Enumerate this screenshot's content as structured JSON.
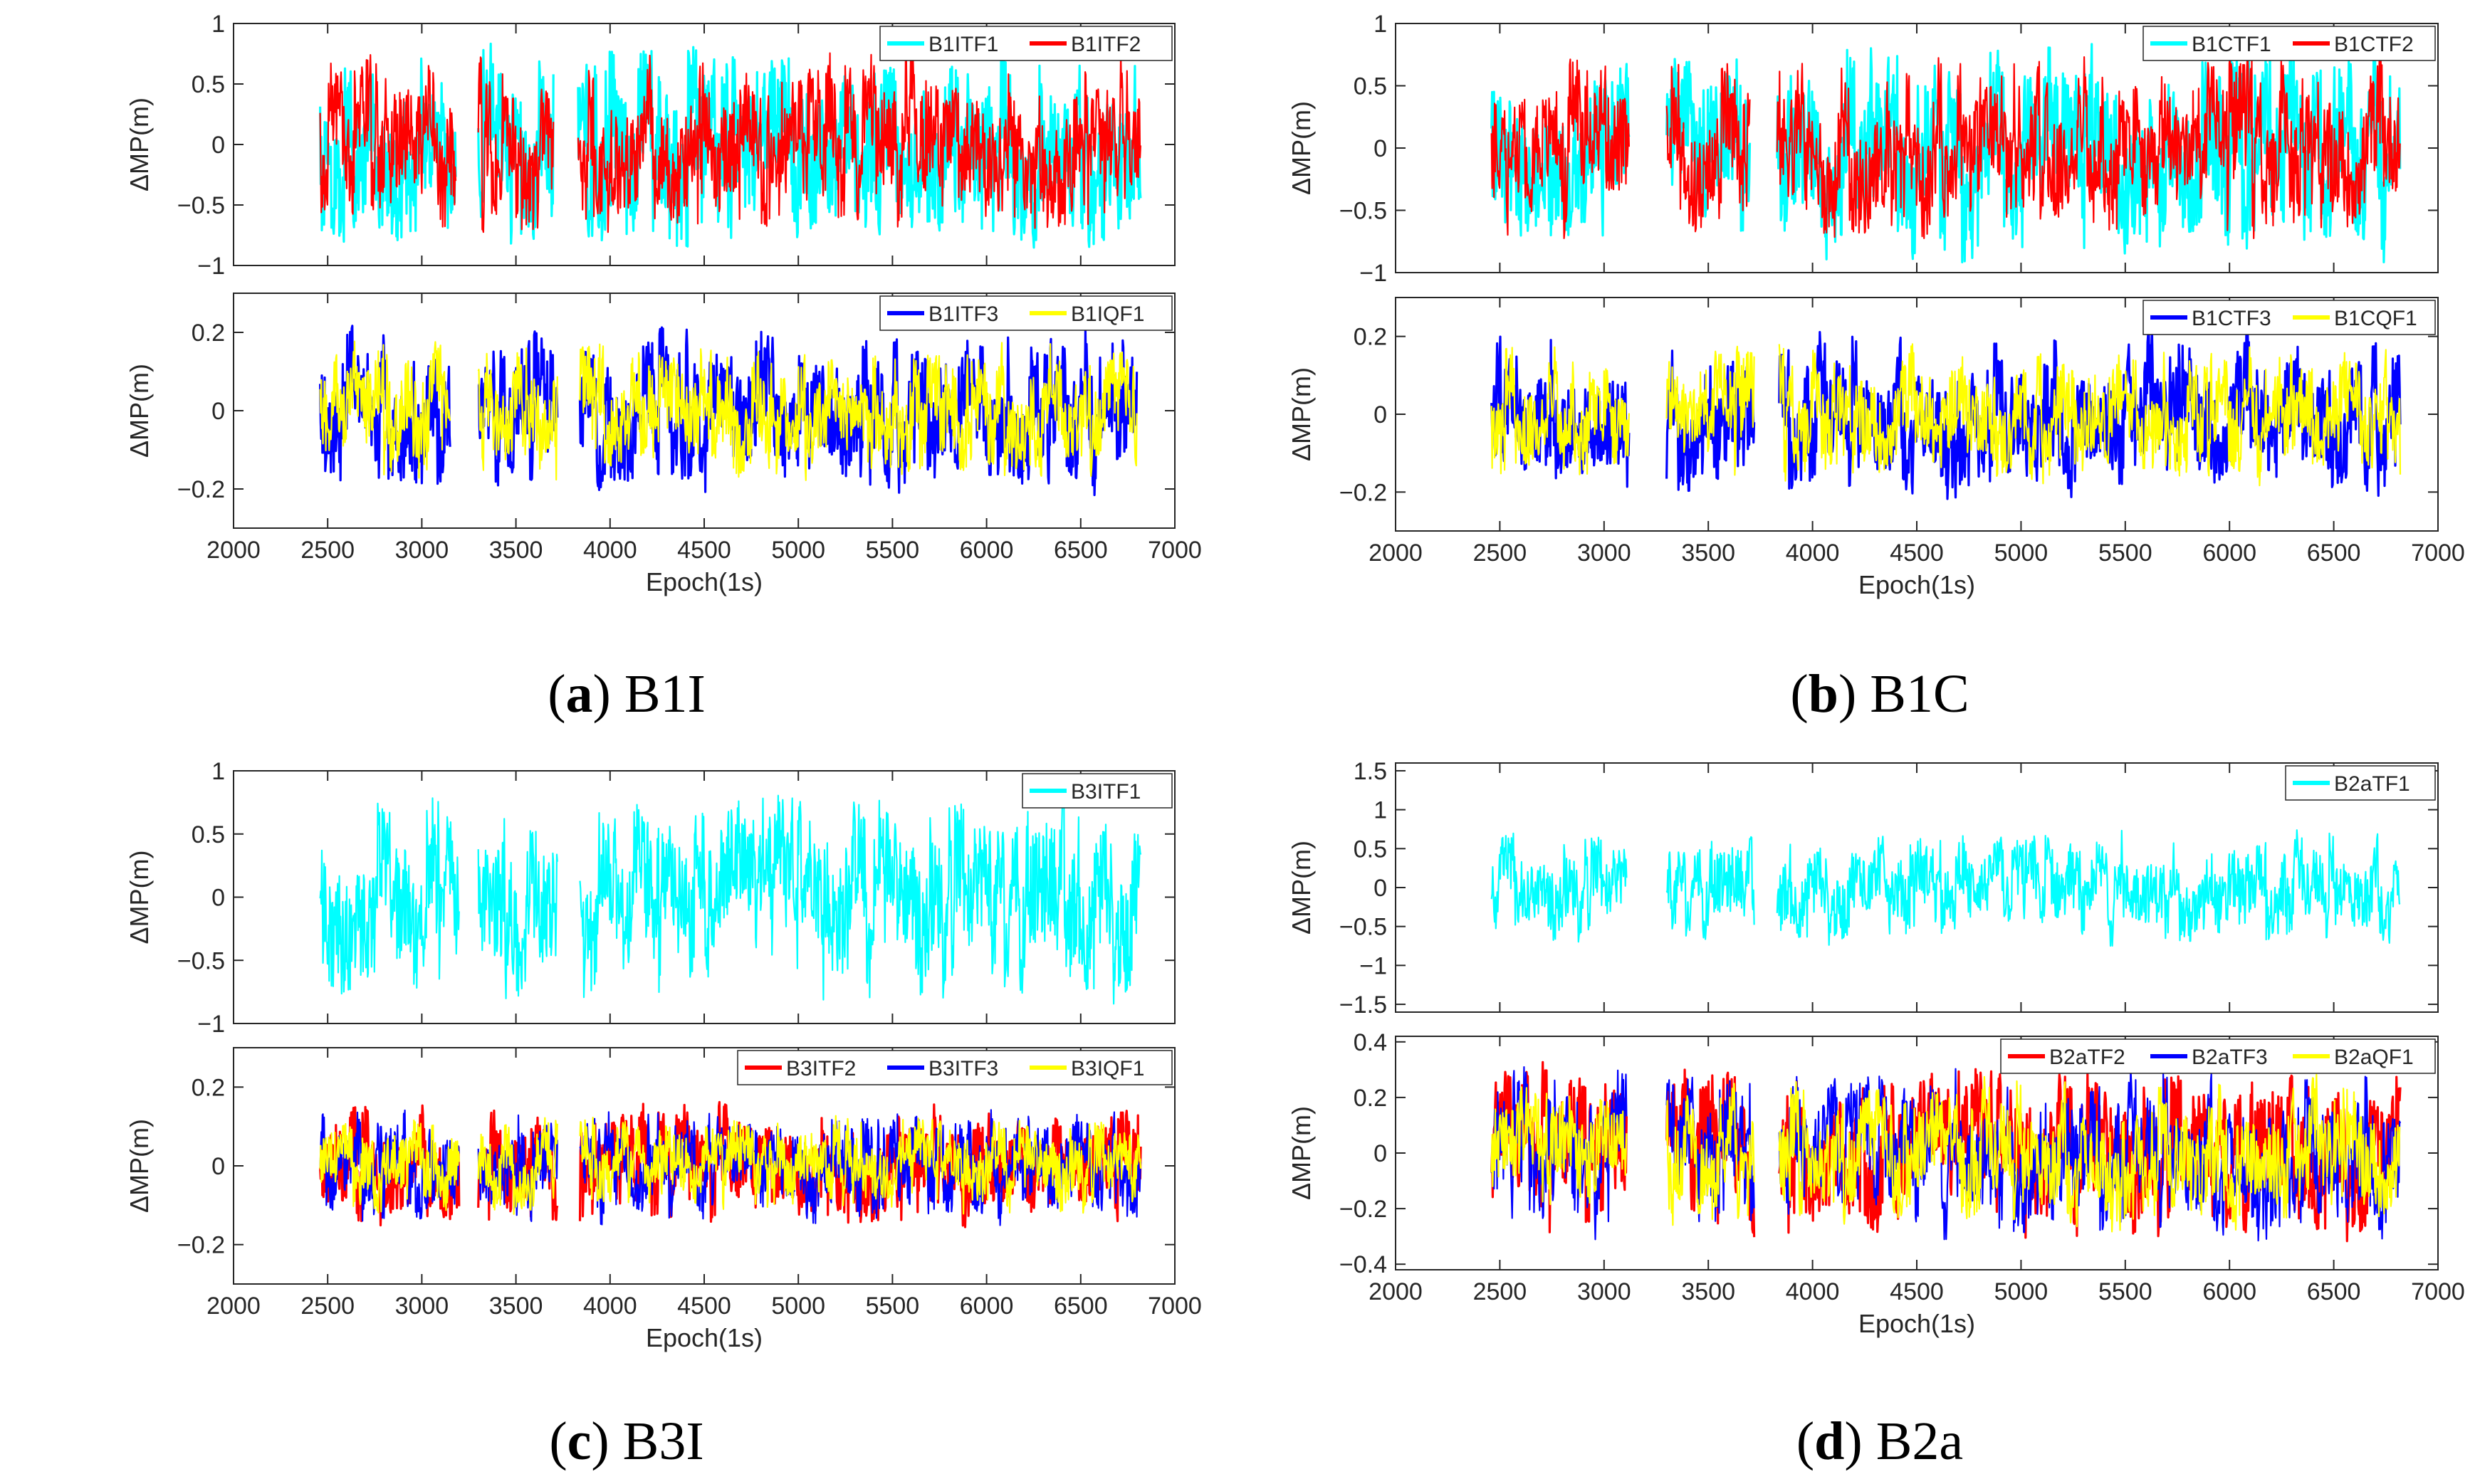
{
  "figure": {
    "captions": [
      {
        "letter": "a",
        "name": "B1I"
      },
      {
        "letter": "b",
        "name": "B1C"
      },
      {
        "letter": "c",
        "name": "B3I"
      },
      {
        "letter": "d",
        "name": "B2a"
      }
    ]
  },
  "chart_data": [
    {
      "type": "line",
      "panel": "a",
      "subplot": "top",
      "ylabel": "ΔMP(m)",
      "ylim": [
        -1,
        1
      ],
      "yticks": [
        -1,
        -0.5,
        0,
        0.5,
        1
      ],
      "xlim": [
        2000,
        7000
      ],
      "xticks": [],
      "series": [
        {
          "name": "B1ITF1",
          "color": "#00ffff",
          "amp": 0.82,
          "seed": 11
        },
        {
          "name": "B1ITF2",
          "color": "#ff0000",
          "amp": 0.72,
          "seed": 12
        }
      ],
      "segments": [
        [
          2460,
          3180
        ],
        [
          3300,
          3700
        ],
        [
          3830,
          6820
        ]
      ],
      "legend": "top-right"
    },
    {
      "type": "line",
      "panel": "a",
      "subplot": "bottom",
      "ylabel": "ΔMP(m)",
      "ylim": [
        -0.3,
        0.3
      ],
      "yticks": [
        -0.2,
        0,
        0.2
      ],
      "xlim": [
        2000,
        7000
      ],
      "xticks": [
        2000,
        2500,
        3000,
        3500,
        4000,
        4500,
        5000,
        5500,
        6000,
        6500,
        7000
      ],
      "xlabel": "Epoch(1s)",
      "series": [
        {
          "name": "B1ITF3",
          "color": "#0000ff",
          "amp": 0.2,
          "seed": 13
        },
        {
          "name": "B1IQF1",
          "color": "#ffff00",
          "amp": 0.17,
          "seed": 14
        }
      ],
      "segments": [
        [
          2460,
          3150
        ],
        [
          3300,
          3720
        ],
        [
          3840,
          6800
        ]
      ],
      "legend": "top-right"
    },
    {
      "type": "line",
      "panel": "b",
      "subplot": "top",
      "ylabel": "ΔMP(m)",
      "ylim": [
        -1,
        1
      ],
      "yticks": [
        -1,
        -0.5,
        0,
        0.5,
        1
      ],
      "xlim": [
        2000,
        7000
      ],
      "xticks": [],
      "series": [
        {
          "name": "B1CTF1",
          "color": "#00ffff",
          "amp": 0.85,
          "seed": 21
        },
        {
          "name": "B1CTF2",
          "color": "#ff0000",
          "amp": 0.72,
          "seed": 22
        }
      ],
      "segments": [
        [
          2460,
          3120
        ],
        [
          3300,
          3700
        ],
        [
          3830,
          6820
        ]
      ],
      "legend": "top-right"
    },
    {
      "type": "line",
      "panel": "b",
      "subplot": "bottom",
      "ylabel": "ΔMP(m)",
      "ylim": [
        -0.3,
        0.3
      ],
      "yticks": [
        -0.2,
        0,
        0.2
      ],
      "xlim": [
        2000,
        7000
      ],
      "xticks": [
        2000,
        2500,
        3000,
        3500,
        4000,
        4500,
        5000,
        5500,
        6000,
        6500,
        7000
      ],
      "xlabel": "Epoch(1s)",
      "series": [
        {
          "name": "B1CTF3",
          "color": "#0000ff",
          "amp": 0.2,
          "seed": 23
        },
        {
          "name": "B1CQF1",
          "color": "#ffff00",
          "amp": 0.17,
          "seed": 24
        }
      ],
      "segments": [
        [
          2460,
          3120
        ],
        [
          3300,
          3720
        ],
        [
          3840,
          6820
        ]
      ],
      "legend": "top-right"
    },
    {
      "type": "line",
      "panel": "c",
      "subplot": "top",
      "ylabel": "ΔMP(m)",
      "ylim": [
        -1,
        1
      ],
      "yticks": [
        -1,
        -0.5,
        0,
        0.5,
        1
      ],
      "xlim": [
        2000,
        7000
      ],
      "xticks": [],
      "series": [
        {
          "name": "B3ITF1",
          "color": "#00ffff",
          "amp": 0.8,
          "seed": 31
        }
      ],
      "segments": [
        [
          2460,
          3200
        ],
        [
          3300,
          3720
        ],
        [
          3840,
          6820
        ]
      ],
      "legend": "top-right"
    },
    {
      "type": "line",
      "panel": "c",
      "subplot": "bottom",
      "ylabel": "ΔMP(m)",
      "ylim": [
        -0.3,
        0.3
      ],
      "yticks": [
        -0.2,
        0,
        0.2
      ],
      "xlim": [
        2000,
        7000
      ],
      "xticks": [
        2000,
        2500,
        3000,
        3500,
        4000,
        4500,
        5000,
        5500,
        6000,
        6500,
        7000
      ],
      "xlabel": "Epoch(1s)",
      "series": [
        {
          "name": "B3ITF2",
          "color": "#ff0000",
          "amp": 0.15,
          "seed": 32
        },
        {
          "name": "B3ITF3",
          "color": "#0000ff",
          "amp": 0.14,
          "seed": 33
        },
        {
          "name": "B3IQF1",
          "color": "#ffff00",
          "amp": 0.12,
          "seed": 34
        }
      ],
      "segments": [
        [
          2460,
          3200
        ],
        [
          3300,
          3720
        ],
        [
          3840,
          6820
        ]
      ],
      "legend": "top-right"
    },
    {
      "type": "line",
      "panel": "d",
      "subplot": "top",
      "ylabel": "ΔMP(m)",
      "ylim": [
        -1.6,
        1.6
      ],
      "yticks": [
        -1.5,
        -1,
        -0.5,
        0,
        0.5,
        1,
        1.5
      ],
      "xlim": [
        2000,
        7000
      ],
      "xticks": [],
      "series": [
        {
          "name": "B2aTF1",
          "color": "#00ffff",
          "amp": 0.7,
          "seed": 41
        }
      ],
      "segments": [
        [
          2460,
          3110
        ],
        [
          3300,
          3720
        ],
        [
          3830,
          6820
        ]
      ],
      "legend": "top-right"
    },
    {
      "type": "line",
      "panel": "d",
      "subplot": "bottom",
      "ylabel": "ΔMP(m)",
      "ylim": [
        -0.42,
        0.42
      ],
      "yticks": [
        -0.4,
        -0.2,
        0,
        0.2,
        0.4
      ],
      "xlim": [
        2000,
        7000
      ],
      "xticks": [
        2000,
        2500,
        3000,
        3500,
        4000,
        4500,
        5000,
        5500,
        6000,
        6500,
        7000
      ],
      "xlabel": "Epoch(1s)",
      "series": [
        {
          "name": "B2aTF2",
          "color": "#ff0000",
          "amp": 0.3,
          "seed": 42
        },
        {
          "name": "B2aTF3",
          "color": "#0000ff",
          "amp": 0.29,
          "seed": 43
        },
        {
          "name": "B2aQF1",
          "color": "#ffff00",
          "amp": 0.26,
          "seed": 44
        }
      ],
      "segments": [
        [
          2460,
          3110
        ],
        [
          3300,
          3720
        ],
        [
          3840,
          6820
        ]
      ],
      "legend": "top-right"
    }
  ]
}
